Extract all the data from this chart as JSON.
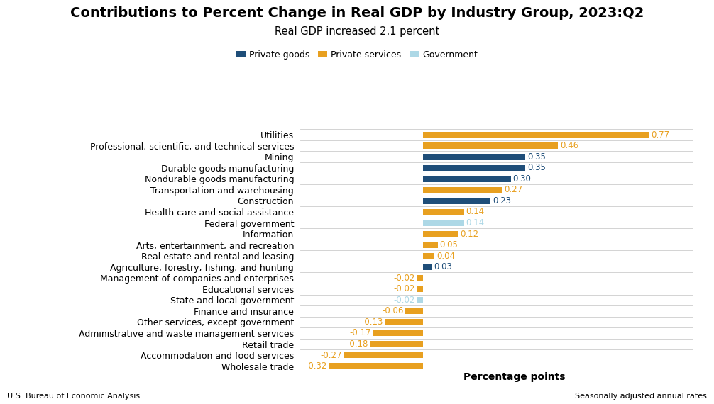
{
  "title": "Contributions to Percent Change in Real GDP by Industry Group, 2023:Q2",
  "subtitle": "Real GDP increased 2.1 percent",
  "xlabel": "Percentage points",
  "footnote_left": "U.S. Bureau of Economic Analysis",
  "footnote_right": "Seasonally adjusted annual rates",
  "categories": [
    "Utilities",
    "Professional, scientific, and technical services",
    "Mining",
    "Durable goods manufacturing",
    "Nondurable goods manufacturing",
    "Transportation and warehousing",
    "Construction",
    "Health care and social assistance",
    "Federal government",
    "Information",
    "Arts, entertainment, and recreation",
    "Real estate and rental and leasing",
    "Agriculture, forestry, fishing, and hunting",
    "Management of companies and enterprises",
    "Educational services",
    "State and local government",
    "Finance and insurance",
    "Other services, except government",
    "Administrative and waste management services",
    "Retail trade",
    "Accommodation and food services",
    "Wholesale trade"
  ],
  "values": [
    0.77,
    0.46,
    0.35,
    0.35,
    0.3,
    0.27,
    0.23,
    0.14,
    0.14,
    0.12,
    0.05,
    0.04,
    0.03,
    -0.02,
    -0.02,
    -0.02,
    -0.06,
    -0.13,
    -0.17,
    -0.18,
    -0.27,
    -0.32
  ],
  "colors": [
    "#E8A020",
    "#E8A020",
    "#1F4E79",
    "#1F4E79",
    "#1F4E79",
    "#E8A020",
    "#1F4E79",
    "#E8A020",
    "#ADD8E6",
    "#E8A020",
    "#E8A020",
    "#E8A020",
    "#1F4E79",
    "#E8A020",
    "#E8A020",
    "#ADD8E6",
    "#E8A020",
    "#E8A020",
    "#E8A020",
    "#E8A020",
    "#E8A020",
    "#E8A020"
  ],
  "legend_labels": [
    "Private goods",
    "Private services",
    "Government"
  ],
  "legend_colors": [
    "#1F4E79",
    "#E8A020",
    "#ADD8E6"
  ],
  "xlim": [
    -0.42,
    0.92
  ],
  "bar_height": 0.55,
  "background_color": "#FFFFFF",
  "grid_color": "#CCCCCC",
  "title_fontsize": 14,
  "subtitle_fontsize": 10.5,
  "label_fontsize": 9,
  "value_label_fontsize": 8.5,
  "xlabel_fontsize": 10
}
